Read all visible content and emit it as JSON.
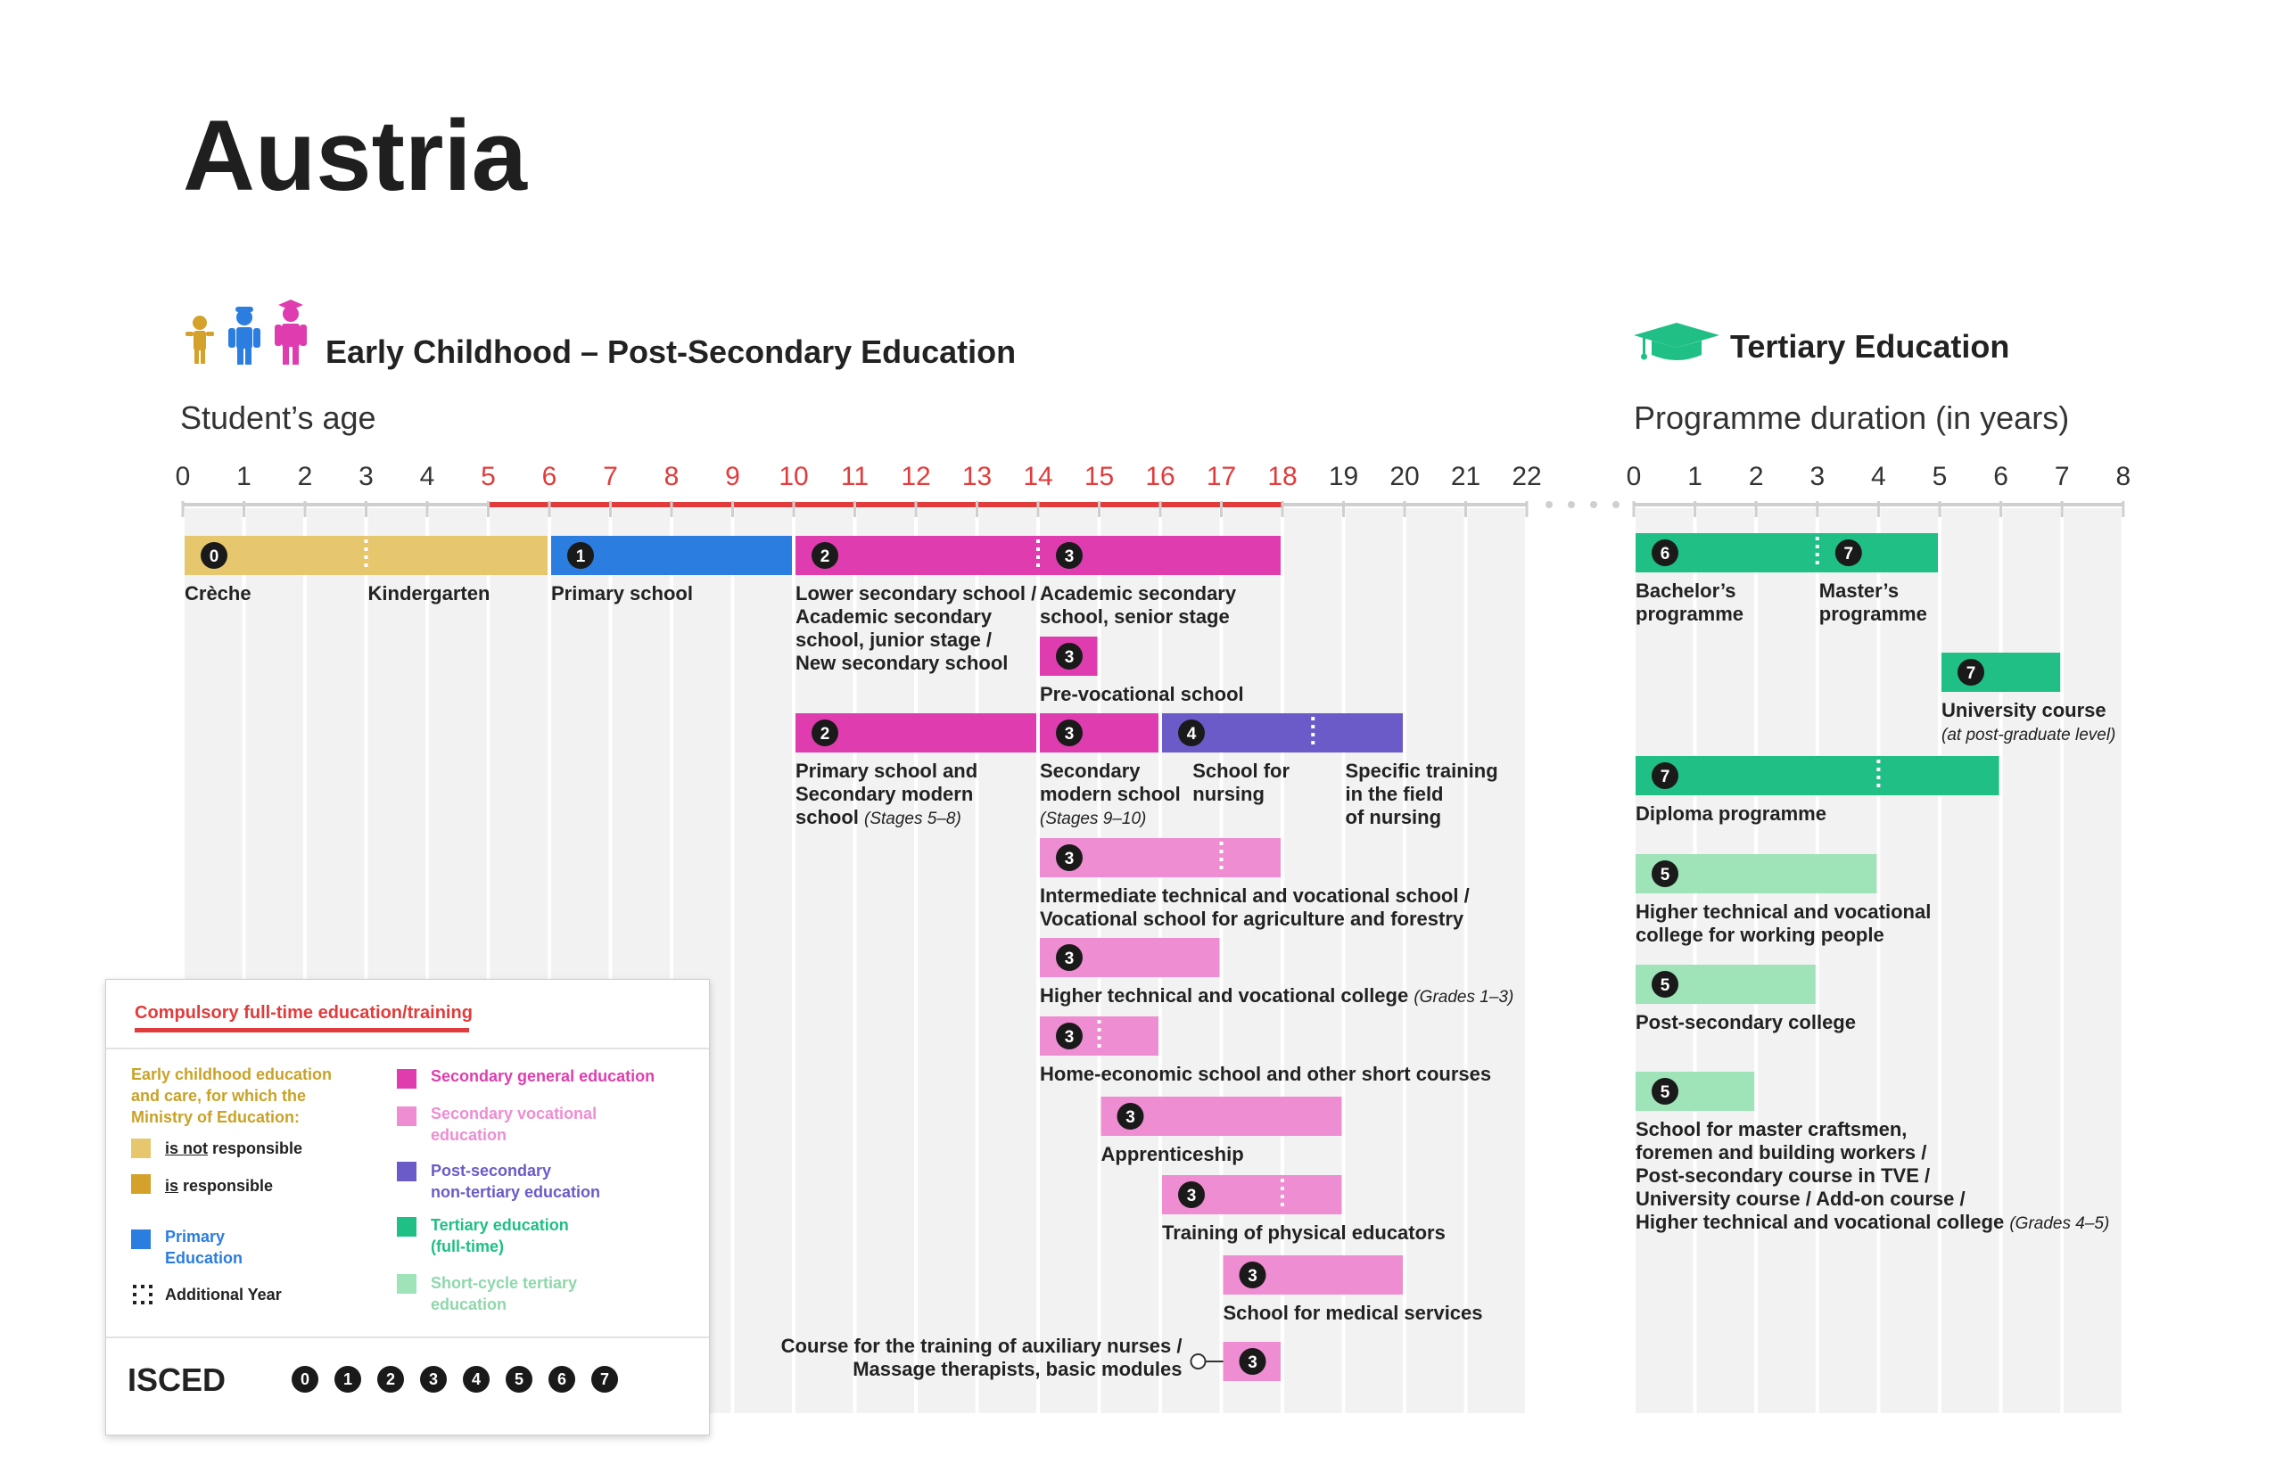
{
  "title": "Austria",
  "sections": {
    "left": "Early Childhood – Post-Secondary Education",
    "right": "Tertiary Education",
    "left_axis": "Student’s age",
    "right_axis": "Programme duration (in years)"
  },
  "colors": {
    "ecec_not": "#e6c76d",
    "ecec_resp": "#d4a12a",
    "primary": "#2b7de0",
    "secgen": "#df3daf",
    "secvoc": "#ee8dd1",
    "postsec": "#6b5bc8",
    "tertiary": "#1fbf85",
    "short": "#9fe3b8",
    "red": "#e23b3b",
    "grid": "#f2f2f2"
  },
  "chart_data": {
    "type": "timeline",
    "left_axis": {
      "label": "Student’s age",
      "ticks": [
        0,
        1,
        2,
        3,
        4,
        5,
        6,
        7,
        8,
        9,
        10,
        11,
        12,
        13,
        14,
        15,
        16,
        17,
        18,
        19,
        20,
        21,
        22
      ],
      "compulsory": [
        5,
        18
      ]
    },
    "right_axis": {
      "label": "Programme duration (in years)",
      "ticks": [
        0,
        1,
        2,
        3,
        4,
        5,
        6,
        7,
        8
      ]
    },
    "left_bars": [
      {
        "id": "ecec",
        "start": 0,
        "end": 6,
        "row": 0,
        "color": "ecec_not",
        "dividers": [
          3
        ],
        "badges": [
          {
            "at": 0,
            "n": "0"
          }
        ],
        "labels": [
          {
            "at": 0,
            "lines": [
              "Crèche"
            ]
          },
          {
            "at": 3,
            "lines": [
              "Kindergarten"
            ]
          }
        ]
      },
      {
        "id": "primary",
        "start": 6,
        "end": 10,
        "row": 0,
        "color": "primary",
        "badges": [
          {
            "at": 6,
            "n": "1"
          }
        ],
        "labels": [
          {
            "at": 6,
            "lines": [
              "Primary school"
            ]
          }
        ]
      },
      {
        "id": "lower-sec",
        "start": 10,
        "end": 18,
        "row": 0,
        "color": "secgen",
        "dividers": [
          14
        ],
        "badges": [
          {
            "at": 10,
            "n": "2"
          },
          {
            "at": 14,
            "n": "3"
          }
        ],
        "labels": [
          {
            "at": 10,
            "lines": [
              "Lower secondary school /",
              "Academic secondary",
              "school, junior stage /",
              "New secondary school"
            ]
          },
          {
            "at": 14,
            "lines": [
              "Academic secondary",
              "school, senior stage"
            ]
          }
        ]
      },
      {
        "id": "pre-voc",
        "start": 14,
        "end": 15,
        "row": 1,
        "color": "secgen",
        "badges": [
          {
            "at": 14,
            "n": "3"
          }
        ],
        "labels": [
          {
            "at": 14,
            "lines": [
              "Pre-vocational school"
            ]
          }
        ]
      },
      {
        "id": "prim-sec-modern",
        "start": 10,
        "end": 14,
        "row": 2,
        "color": "secgen",
        "badges": [
          {
            "at": 10,
            "n": "2"
          }
        ],
        "labels": [
          {
            "at": 10,
            "lines": [
              "Primary school and",
              "Secondary modern"
            ],
            "last": "school ",
            "note": "(Stages 5–8)"
          }
        ]
      },
      {
        "id": "sec-modern",
        "start": 14,
        "end": 16,
        "row": 2,
        "color": "secgen",
        "badges": [
          {
            "at": 14,
            "n": "3"
          }
        ],
        "labels": [
          {
            "at": 14,
            "lines": [
              "Secondary",
              "modern school"
            ],
            "note": "(Stages 9–10)"
          }
        ]
      },
      {
        "id": "nursing",
        "start": 16,
        "end": 20,
        "row": 2,
        "color": "postsec",
        "dividers": [
          18.5
        ],
        "badges": [
          {
            "at": 16,
            "n": "4"
          }
        ],
        "labels": [
          {
            "at": 16.5,
            "lines": [
              "School for",
              "nursing"
            ]
          },
          {
            "at": 19,
            "lines": [
              "Specific training",
              "in the field",
              "of nursing"
            ]
          }
        ]
      },
      {
        "id": "intermediate",
        "start": 14,
        "end": 18,
        "row": 3,
        "color": "secvoc",
        "dividers": [
          17
        ],
        "badges": [
          {
            "at": 14,
            "n": "3"
          }
        ],
        "labels": [
          {
            "at": 14,
            "lines": [
              "Intermediate technical and vocational school /",
              "Vocational school for agriculture and forestry"
            ]
          }
        ]
      },
      {
        "id": "htl",
        "start": 14,
        "end": 17,
        "row": 4,
        "color": "secvoc",
        "badges": [
          {
            "at": 14,
            "n": "3"
          }
        ],
        "labels": [
          {
            "at": 14,
            "lines": [],
            "last": "Higher technical and vocational college ",
            "note": "(Grades 1–3)"
          }
        ]
      },
      {
        "id": "home-econ",
        "start": 14,
        "end": 16,
        "row": 5,
        "color": "secvoc",
        "dividers": [
          15
        ],
        "badges": [
          {
            "at": 14,
            "n": "3"
          }
        ],
        "labels": [
          {
            "at": 14,
            "lines": [
              "Home-economic school and other short courses"
            ]
          }
        ]
      },
      {
        "id": "apprentice",
        "start": 15,
        "end": 19,
        "row": 6,
        "color": "secvoc",
        "badges": [
          {
            "at": 15,
            "n": "3"
          }
        ],
        "labels": [
          {
            "at": 15,
            "lines": [
              "Apprenticeship"
            ]
          }
        ]
      },
      {
        "id": "phys-edu",
        "start": 16,
        "end": 19,
        "row": 7,
        "color": "secvoc",
        "dividers": [
          18
        ],
        "badges": [
          {
            "at": 16,
            "n": "3"
          }
        ],
        "labels": [
          {
            "at": 16,
            "lines": [
              "Training of physical educators"
            ]
          }
        ]
      },
      {
        "id": "medical",
        "start": 17,
        "end": 20,
        "row": 8,
        "color": "secvoc",
        "badges": [
          {
            "at": 17,
            "n": "3"
          }
        ],
        "labels": [
          {
            "at": 17,
            "lines": [
              "School for medical services"
            ]
          }
        ]
      },
      {
        "id": "aux-nurses",
        "start": 17,
        "end": 18,
        "row": 9,
        "color": "secvoc",
        "badges": [
          {
            "at": 17,
            "n": "3"
          }
        ],
        "labels": [
          {
            "at": 17,
            "side": "left",
            "lines": [
              "Course for the training of auxiliary nurses /",
              "Massage therapists, basic modules"
            ]
          }
        ]
      }
    ],
    "right_bars": [
      {
        "id": "bachelor-master",
        "start": 0,
        "end": 5,
        "row": 0,
        "color": "tertiary",
        "dividers": [
          3
        ],
        "badges": [
          {
            "at": 0,
            "n": "6"
          },
          {
            "at": 3,
            "n": "7"
          }
        ],
        "labels": [
          {
            "at": 0,
            "lines": [
              "Bachelor’s",
              "programme"
            ]
          },
          {
            "at": 3,
            "lines": [
              "Master’s",
              "programme"
            ]
          }
        ]
      },
      {
        "id": "univ-course",
        "start": 5,
        "end": 7,
        "row": 1,
        "color": "tertiary",
        "badges": [
          {
            "at": 5,
            "n": "7"
          }
        ],
        "labels": [
          {
            "at": 5,
            "lines": [
              "University course"
            ],
            "note": "(at post-graduate level)",
            "note_own_line": true
          }
        ]
      },
      {
        "id": "diploma",
        "start": 0,
        "end": 6,
        "row": 2,
        "color": "tertiary",
        "dividers": [
          4
        ],
        "badges": [
          {
            "at": 0,
            "n": "7"
          }
        ],
        "labels": [
          {
            "at": 0,
            "lines": [
              "Diploma programme"
            ]
          }
        ]
      },
      {
        "id": "htl-working",
        "start": 0,
        "end": 4,
        "row": 3,
        "color": "short",
        "badges": [
          {
            "at": 0,
            "n": "5"
          }
        ],
        "labels": [
          {
            "at": 0,
            "lines": [
              "Higher technical and vocational",
              "college for working people"
            ]
          }
        ]
      },
      {
        "id": "postsec-college",
        "start": 0,
        "end": 3,
        "row": 4,
        "color": "short",
        "badges": [
          {
            "at": 0,
            "n": "5"
          }
        ],
        "labels": [
          {
            "at": 0,
            "lines": [
              "Post-secondary college"
            ]
          }
        ]
      },
      {
        "id": "master-craftsmen",
        "start": 0,
        "end": 2,
        "row": 5,
        "color": "short",
        "badges": [
          {
            "at": 0,
            "n": "5"
          }
        ],
        "labels": [
          {
            "at": 0,
            "lines": [
              "School for master craftsmen,",
              "foremen and building workers /",
              "Post-secondary course in TVE /",
              "University course / Add-on course /"
            ],
            "last": "Higher technical and vocational college ",
            "note": "(Grades 4–5)"
          }
        ]
      }
    ]
  },
  "legend": {
    "compulsory": "Compulsory full-time education/training",
    "ecec_head": [
      "Early childhood education",
      "and care, for which the",
      "Ministry of Education:"
    ],
    "not_a": "is not",
    "not_b": " responsible",
    "resp_a": "is",
    "resp_b": " responsible",
    "primary": [
      "Primary",
      "Education"
    ],
    "additional": "Additional Year",
    "secgen": "Secondary general education",
    "secvoc": [
      "Secondary vocational",
      "education"
    ],
    "postsec": [
      "Post-secondary",
      "non-tertiary education"
    ],
    "tertiary": [
      "Tertiary education",
      "(full-time)"
    ],
    "short": [
      "Short-cycle tertiary",
      "education"
    ],
    "isced_label": "ISCED",
    "isced_levels": [
      "0",
      "1",
      "2",
      "3",
      "4",
      "5",
      "6",
      "7"
    ]
  }
}
